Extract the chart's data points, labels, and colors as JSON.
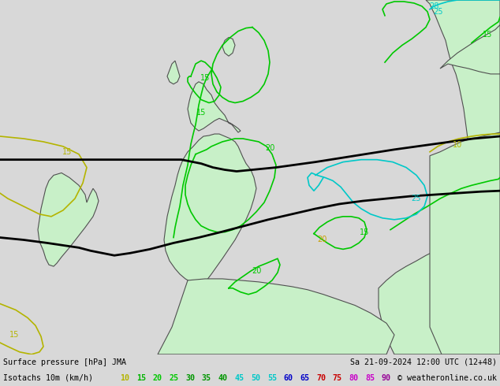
{
  "title_left": "Surface pressure [hPa] JMA",
  "title_right": "Sa 21-09-2024 12:00 UTC (12+48)",
  "legend_label": "Isotachs 10m (km/h)",
  "copyright": "© weatheronline.co.uk",
  "legend_values": [
    10,
    15,
    20,
    25,
    30,
    35,
    40,
    45,
    50,
    55,
    60,
    65,
    70,
    75,
    80,
    85,
    90
  ],
  "legend_value_colors": [
    "#b4b400",
    "#00b400",
    "#00c800",
    "#00c800",
    "#009600",
    "#009600",
    "#009600",
    "#00c8c8",
    "#00c8c8",
    "#00c8c8",
    "#0000c8",
    "#0000c8",
    "#c80000",
    "#c80000",
    "#c800c8",
    "#c800c8",
    "#960096"
  ],
  "bg_color": "#d8d8d8",
  "map_bg": "#d8d8d8",
  "land_fill": "#c8f0c8",
  "land_border": "#505050",
  "figsize": [
    6.34,
    4.9
  ],
  "dpi": 100
}
